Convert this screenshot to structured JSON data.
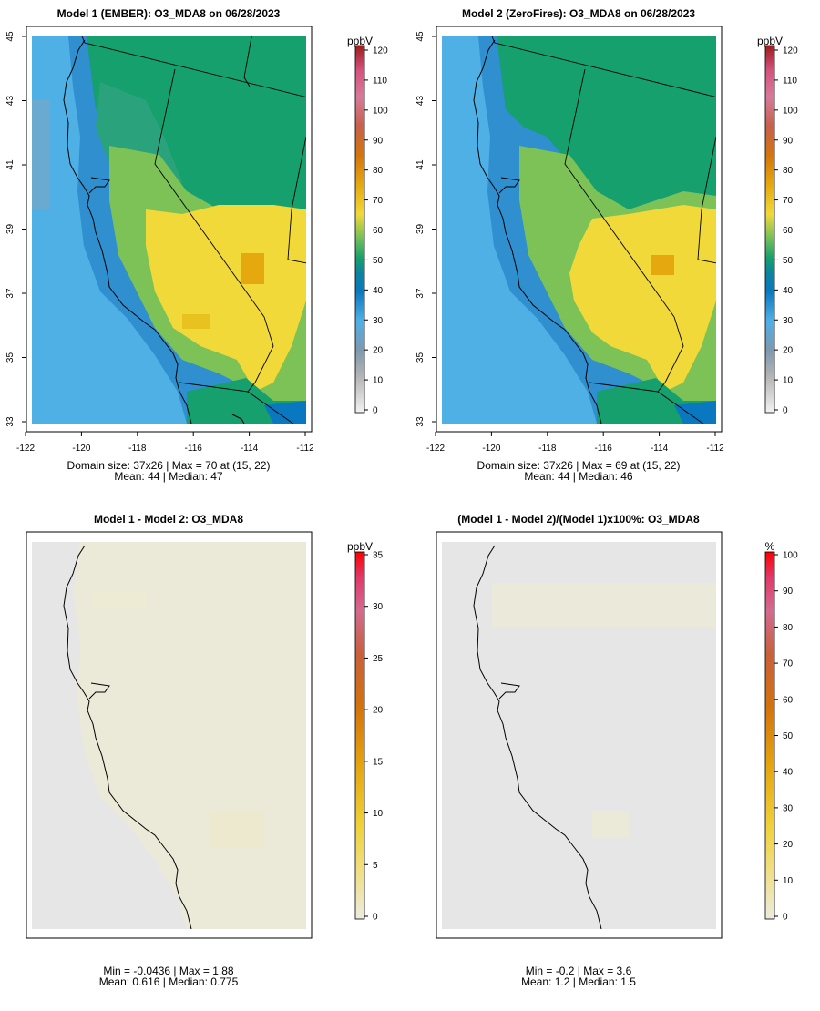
{
  "panels": [
    {
      "title": "Model 1 (EMBER): O3_MDA8 on 06/28/2023",
      "colorbar": {
        "unit": "ppbV",
        "labels": [
          "0",
          "10",
          "20",
          "30",
          "40",
          "50",
          "60",
          "70",
          "80",
          "90",
          "100",
          "110",
          "120"
        ],
        "min": 0,
        "max": 120
      },
      "stats_line1": "Domain size: 37x26 | Max = 70 at (15, 22)",
      "stats_line2": "Mean: 44 |  Median: 47",
      "x_ticks": [
        "-122",
        "-120",
        "-118",
        "-116",
        "-114",
        "-112"
      ],
      "y_ticks": [
        "33",
        "35",
        "37",
        "39",
        "41",
        "43",
        "45"
      ]
    },
    {
      "title": "Model 2 (ZeroFires): O3_MDA8 on 06/28/2023",
      "colorbar": {
        "unit": "ppbV",
        "labels": [
          "0",
          "10",
          "20",
          "30",
          "40",
          "50",
          "60",
          "70",
          "80",
          "90",
          "100",
          "110",
          "120"
        ],
        "min": 0,
        "max": 120
      },
      "stats_line1": "Domain size: 37x26 | Max = 69 at (15, 22)",
      "stats_line2": "Mean: 44 |  Median: 46",
      "x_ticks": [
        "-122",
        "-120",
        "-118",
        "-116",
        "-114",
        "-112"
      ],
      "y_ticks": [
        "33",
        "35",
        "37",
        "39",
        "41",
        "43",
        "45"
      ]
    },
    {
      "title": "Model 1 - Model 2: O3_MDA8",
      "colorbar": {
        "unit": "ppbV",
        "labels": [
          "0",
          "5",
          "10",
          "15",
          "20",
          "25",
          "30",
          "35"
        ],
        "min": 0,
        "max": 35
      },
      "stats_line1": "Min = -0.0436 | Max = 1.88",
      "stats_line2": "Mean: 0.616 |  Median: 0.775"
    },
    {
      "title": "(Model 1 - Model 2)/(Model 1)x100%: O3_MDA8",
      "colorbar": {
        "unit": "%",
        "labels": [
          "0",
          "10",
          "20",
          "30",
          "40",
          "50",
          "60",
          "70",
          "80",
          "90",
          "100"
        ],
        "min": 0,
        "max": 100
      },
      "stats_line1": "Min = -0.2 | Max = 3.6",
      "stats_line2": "Mean: 1.2 |  Median: 1.5"
    }
  ],
  "colors": {
    "ocean_low": "#4fb0e6",
    "low_blue": "#2f8fcf",
    "mid_green": "#15a06e",
    "light_green": "#7cc257",
    "yellow": "#f1d93a",
    "orange": "#e5a90f",
    "diff_background": "#e6e6e6",
    "diff_land": "#ebe9d8"
  }
}
